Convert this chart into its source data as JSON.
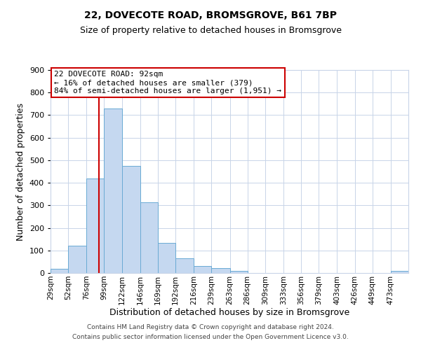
{
  "title1": "22, DOVECOTE ROAD, BROMSGROVE, B61 7BP",
  "title2": "Size of property relative to detached houses in Bromsgrove",
  "xlabel": "Distribution of detached houses by size in Bromsgrove",
  "ylabel": "Number of detached properties",
  "bin_edges": [
    29,
    52,
    76,
    99,
    122,
    146,
    169,
    192,
    216,
    239,
    263,
    286,
    309,
    333,
    356,
    379,
    403,
    426,
    449,
    473,
    496
  ],
  "bar_heights": [
    20,
    120,
    420,
    730,
    475,
    315,
    132,
    65,
    30,
    22,
    10,
    0,
    0,
    0,
    0,
    0,
    0,
    0,
    0,
    8
  ],
  "bar_color": "#c5d8f0",
  "bar_edgecolor": "#6aaad4",
  "vline_x": 92,
  "vline_color": "#cc0000",
  "ylim": [
    0,
    900
  ],
  "yticks": [
    0,
    100,
    200,
    300,
    400,
    500,
    600,
    700,
    800,
    900
  ],
  "annotation_title": "22 DOVECOTE ROAD: 92sqm",
  "annotation_line1": "← 16% of detached houses are smaller (379)",
  "annotation_line2": "84% of semi-detached houses are larger (1,951) →",
  "annotation_box_facecolor": "#ffffff",
  "annotation_box_edgecolor": "#cc0000",
  "footer1": "Contains HM Land Registry data © Crown copyright and database right 2024.",
  "footer2": "Contains public sector information licensed under the Open Government Licence v3.0.",
  "background_color": "#ffffff",
  "grid_color": "#c8d4e8"
}
